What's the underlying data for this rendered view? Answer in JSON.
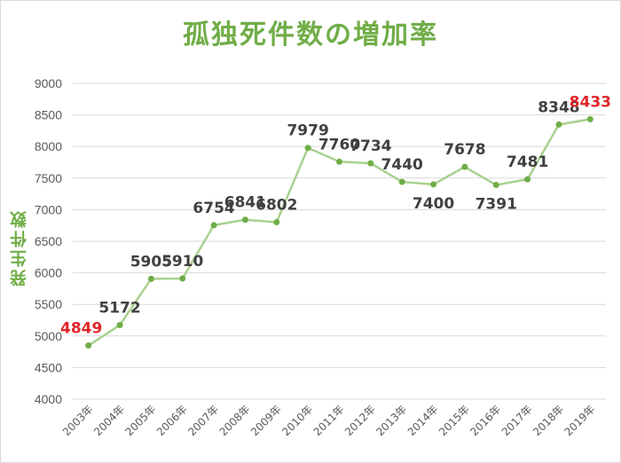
{
  "chart_data": {
    "type": "line",
    "title": "孤独死件数の増加率",
    "ylabel": "発生件数",
    "xlabel": "",
    "categories": [
      "2003年",
      "2004年",
      "2005年",
      "2006年",
      "2007年",
      "2008年",
      "2009年",
      "2010年",
      "2011年",
      "2012年",
      "2013年",
      "2014年",
      "2015年",
      "2016年",
      "2017年",
      "2018年",
      "2019年"
    ],
    "series": [
      {
        "values": [
          4849,
          5172,
          5905,
          5910,
          6754,
          6841,
          6802,
          7979,
          7760,
          7734,
          7440,
          7400,
          7678,
          7391,
          7481,
          8348,
          8433
        ]
      }
    ],
    "ylim": [
      4000,
      9000
    ],
    "yticks": [
      4000,
      4500,
      5000,
      5500,
      6000,
      6500,
      7000,
      7500,
      8000,
      8500,
      9000
    ],
    "grid": true,
    "highlighted_labels": [
      "2003年",
      "2019年"
    ],
    "colors": {
      "line": "#a9d18e",
      "marker": "#70ad47",
      "title": "#70ad47",
      "highlight_label": "#e0262a",
      "data_label": "#404040",
      "grid": "#d9d9d9",
      "tick": "#595959"
    }
  }
}
